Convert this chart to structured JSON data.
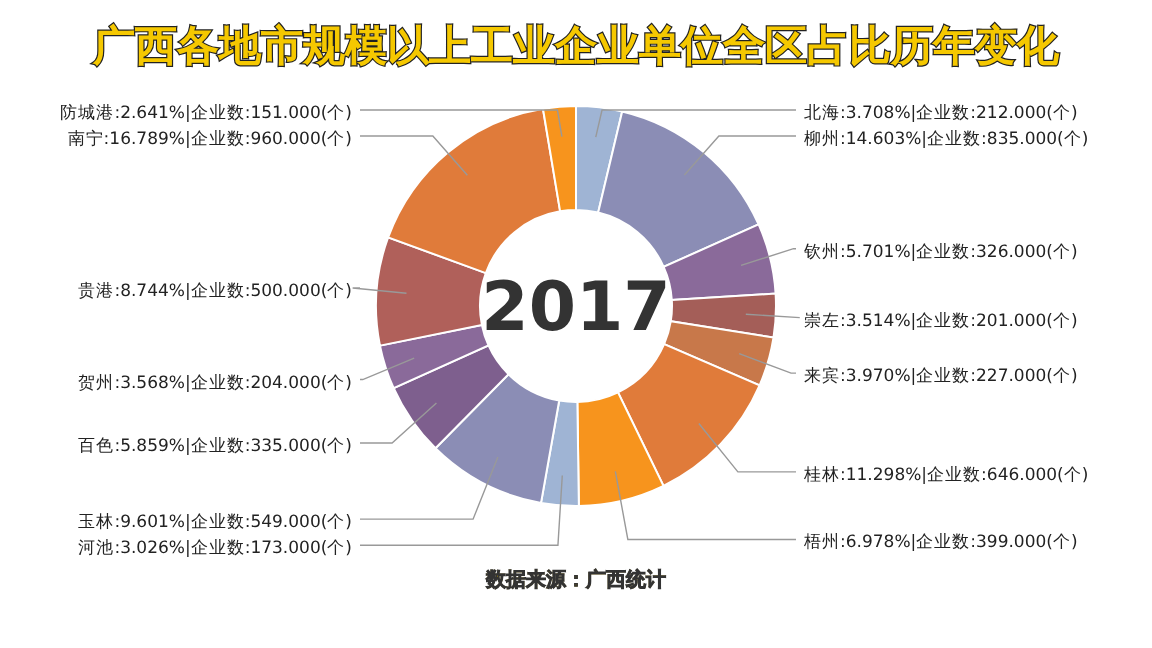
{
  "chart_data": {
    "type": "donut",
    "title": "广西各地市规模以上工业企业单位全区占比历年变化",
    "categories": [
      "北海",
      "柳州",
      "钦州",
      "崇左",
      "来宾",
      "桂林",
      "梧州",
      "河池",
      "玉林",
      "百色",
      "贺州",
      "贵港",
      "南宁",
      "防城港"
    ],
    "values": [
      3.708,
      14.603,
      5.701,
      3.514,
      3.97,
      11.298,
      6.978,
      3.026,
      9.601,
      5.859,
      3.568,
      8.744,
      16.789,
      2.641
    ],
    "value_labels": [
      "3.708%|企业数:212.000(个)",
      "14.603%|企业数:835.000(个)",
      "5.701%|企业数:326.000(个)",
      "3.514%|企业数:201.000(个)",
      "3.970%|企业数:227.000(个)",
      "11.298%|企业数:646.000(个)",
      "6.978%|企业数:399.000(个)",
      "3.026%|企业数:173.000(个)",
      "9.601%|企业数:549.000(个)",
      "5.859%|企业数:335.000(个)",
      "3.568%|企业数:204.000(个)",
      "8.744%|企业数:500.000(个)",
      "16.789%|企业数:960.000(个)",
      "2.641%|企业数:151.000(个)"
    ],
    "colors": [
      "#9fb4d4",
      "#8b8db5",
      "#8a6a9a",
      "#a45e58",
      "#c8784a",
      "#e07b3a",
      "#f7941d",
      "#9fb4d4",
      "#8b8db5",
      "#7e5f8e",
      "#8a6a9a",
      "#b0605a",
      "#e07b3a",
      "#f7941d"
    ],
    "annotations": [
      "2017",
      "数据来源：广西统计"
    ]
  }
}
